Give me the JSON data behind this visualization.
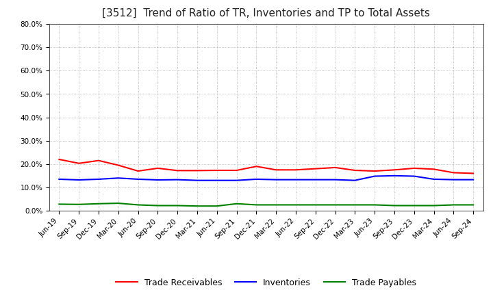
{
  "title": "[3512]  Trend of Ratio of TR, Inventories and TP to Total Assets",
  "x_labels": [
    "Jun-19",
    "Sep-19",
    "Dec-19",
    "Mar-20",
    "Jun-20",
    "Sep-20",
    "Dec-20",
    "Mar-21",
    "Jun-21",
    "Sep-21",
    "Dec-21",
    "Mar-22",
    "Jun-22",
    "Sep-22",
    "Dec-22",
    "Mar-23",
    "Jun-23",
    "Sep-23",
    "Dec-23",
    "Mar-24",
    "Jun-24",
    "Sep-24"
  ],
  "trade_receivables": [
    0.22,
    0.203,
    0.215,
    0.195,
    0.17,
    0.182,
    0.172,
    0.172,
    0.173,
    0.173,
    0.19,
    0.175,
    0.175,
    0.18,
    0.185,
    0.173,
    0.17,
    0.175,
    0.182,
    0.178,
    0.163,
    0.16
  ],
  "inventories": [
    0.135,
    0.132,
    0.135,
    0.14,
    0.135,
    0.132,
    0.133,
    0.13,
    0.13,
    0.13,
    0.135,
    0.133,
    0.133,
    0.133,
    0.133,
    0.13,
    0.148,
    0.15,
    0.148,
    0.135,
    0.133,
    0.133
  ],
  "trade_payables": [
    0.028,
    0.027,
    0.03,
    0.032,
    0.025,
    0.022,
    0.022,
    0.02,
    0.02,
    0.03,
    0.025,
    0.025,
    0.025,
    0.025,
    0.025,
    0.025,
    0.025,
    0.022,
    0.022,
    0.022,
    0.025,
    0.025
  ],
  "tr_color": "#ff0000",
  "inv_color": "#0000ff",
  "tp_color": "#008000",
  "ylim": [
    0.0,
    0.8
  ],
  "yticks": [
    0.0,
    0.1,
    0.2,
    0.3,
    0.4,
    0.5,
    0.6,
    0.7,
    0.8
  ],
  "background_color": "#ffffff",
  "grid_color": "#aaaaaa",
  "title_fontsize": 11,
  "tick_fontsize": 7.5,
  "legend_labels": [
    "Trade Receivables",
    "Inventories",
    "Trade Payables"
  ]
}
